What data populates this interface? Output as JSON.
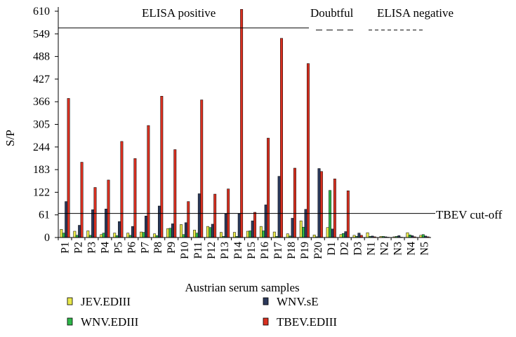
{
  "chart_data": {
    "type": "bar",
    "xlabel": "Austrian serum samples",
    "ylabel": "S/P",
    "ylim": [
      0,
      610
    ],
    "yticks": [
      0,
      61,
      122,
      183,
      244,
      305,
      366,
      427,
      488,
      549,
      610
    ],
    "categories": [
      "P1",
      "P2",
      "P3",
      "P4",
      "P5",
      "P6",
      "P7",
      "P8",
      "P9",
      "P10",
      "P11",
      "P12",
      "P13",
      "P14",
      "P15",
      "P16",
      "P17",
      "P18",
      "P19",
      "P20",
      "D1",
      "D2",
      "D3",
      "N1",
      "N2",
      "N3",
      "N4",
      "N5"
    ],
    "series": [
      {
        "name": "JEV.EDIII",
        "color": "#e8e84a",
        "values": [
          22,
          17,
          18,
          8,
          12,
          12,
          15,
          10,
          24,
          35,
          20,
          30,
          14,
          14,
          17,
          30,
          15,
          10,
          45,
          7,
          27,
          8,
          6,
          13,
          3,
          2,
          13,
          6
        ]
      },
      {
        "name": "WNV.EDIII",
        "color": "#2eb84a",
        "values": [
          12,
          6,
          6,
          12,
          5,
          6,
          14,
          5,
          25,
          8,
          12,
          27,
          3,
          3,
          18,
          18,
          3,
          4,
          28,
          2,
          127,
          11,
          3,
          3,
          3,
          3,
          7,
          8
        ]
      },
      {
        "name": "WNV.sE",
        "color": "#2c3a5c",
        "values": [
          97,
          33,
          75,
          77,
          43,
          30,
          58,
          85,
          37,
          40,
          118,
          36,
          64,
          64,
          45,
          88,
          165,
          52,
          76,
          186,
          23,
          16,
          12,
          4,
          2,
          5,
          5,
          4
        ]
      },
      {
        "name": "TBEV.EDIII",
        "color": "#d93020",
        "values": [
          375,
          203,
          135,
          155,
          259,
          213,
          302,
          381,
          237,
          97,
          371,
          117,
          131,
          615,
          68,
          268,
          537,
          187,
          469,
          178,
          158,
          126,
          6,
          2,
          1,
          1,
          2,
          2
        ]
      }
    ],
    "reference_lines": [
      {
        "label": "TBEV cut-off",
        "value": 65
      },
      {
        "label": "",
        "value": 565
      }
    ],
    "regions": {
      "positive": "ELISA positive",
      "doubtful": "Doubtful",
      "negative": "ELISA negative"
    },
    "legend": "bottom"
  }
}
